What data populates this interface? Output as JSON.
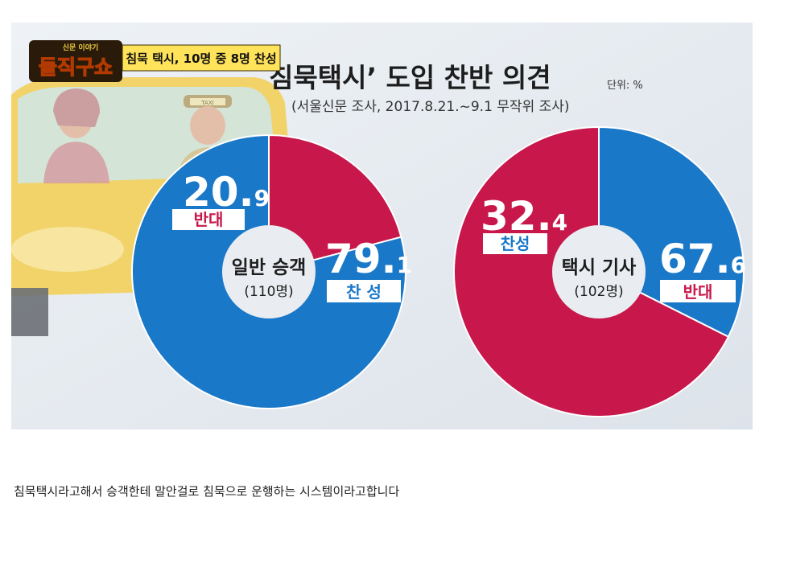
{
  "show": {
    "logo_small": "신문 이야기",
    "logo_main": "돌직구쇼",
    "headline": "침묵 택시, 10명 중 8명 찬성"
  },
  "taxi_sign": "TAXI",
  "colors": {
    "favor": "#1a78c8",
    "oppose": "#c8174a",
    "background": "#e4e9ef"
  },
  "chart_data": [
    {
      "type": "pie",
      "title": "침묵택시’ 도입 찬반 의견",
      "unit": "단위: %",
      "subtitle": "(서울신문 조사, 2017.8.21.~9.1 무작위 조사)",
      "center_label": "일반 승객",
      "center_sub": "(110명)",
      "slices": [
        {
          "label": "반대",
          "value": 20.9,
          "int": "20.",
          "dec": "9",
          "color": "#c8174a"
        },
        {
          "label": "찬 성",
          "value": 79.1,
          "int": "79.",
          "dec": "1",
          "color": "#1a78c8"
        }
      ]
    },
    {
      "type": "pie",
      "center_label": "택시 기사",
      "center_sub": "(102명)",
      "slices": [
        {
          "label": "찬성",
          "value": 32.4,
          "int": "32.",
          "dec": "4",
          "color": "#1a78c8"
        },
        {
          "label": "반대",
          "value": 67.6,
          "int": "67.",
          "dec": "6",
          "color": "#c8174a"
        }
      ]
    }
  ],
  "caption": "침묵택시라고해서 승객한테 말안걸로 침묵으로 운행하는 시스템이라고합니다"
}
